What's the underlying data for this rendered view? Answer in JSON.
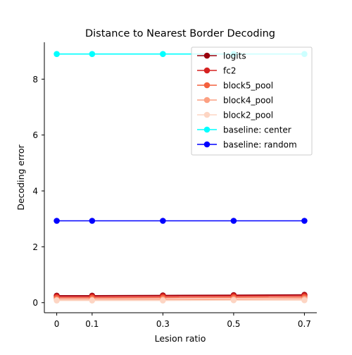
{
  "chart_data": {
    "type": "line",
    "title": "Distance to Nearest Border Decoding",
    "xlabel": "Lesion ratio",
    "ylabel": "Decoding error",
    "x": [
      0,
      0.1,
      0.3,
      0.5,
      0.7
    ],
    "x_tick_labels": [
      "0",
      "0.1",
      "0.3",
      "0.5",
      "0.7"
    ],
    "xlim": [
      -0.035,
      0.735
    ],
    "ylim": [
      -0.36,
      9.32
    ],
    "y_ticks": [
      0,
      2,
      4,
      6,
      8
    ],
    "y_tick_labels": [
      "0",
      "2",
      "4",
      "6",
      "8"
    ],
    "grid": false,
    "legend_position": "top-right",
    "series": [
      {
        "name": "logits",
        "color": "#99000d",
        "values": [
          0.25,
          0.25,
          0.26,
          0.27,
          0.28
        ]
      },
      {
        "name": "fc2",
        "color": "#d52221",
        "values": [
          0.22,
          0.22,
          0.23,
          0.24,
          0.25
        ]
      },
      {
        "name": "block5_pool",
        "color": "#f4613e",
        "values": [
          0.17,
          0.17,
          0.18,
          0.19,
          0.2
        ]
      },
      {
        "name": "block4_pool",
        "color": "#fca082",
        "values": [
          0.11,
          0.11,
          0.12,
          0.13,
          0.14
        ]
      },
      {
        "name": "block2_pool",
        "color": "#fdd5c3",
        "values": [
          0.08,
          0.08,
          0.08,
          0.09,
          0.09
        ]
      },
      {
        "name": "baseline: center",
        "color": "#00ffff",
        "values": [
          8.9,
          8.9,
          8.9,
          8.9,
          8.9
        ]
      },
      {
        "name": "baseline: random",
        "color": "#0000ff",
        "values": [
          2.93,
          2.93,
          2.93,
          2.93,
          2.93
        ]
      }
    ]
  }
}
